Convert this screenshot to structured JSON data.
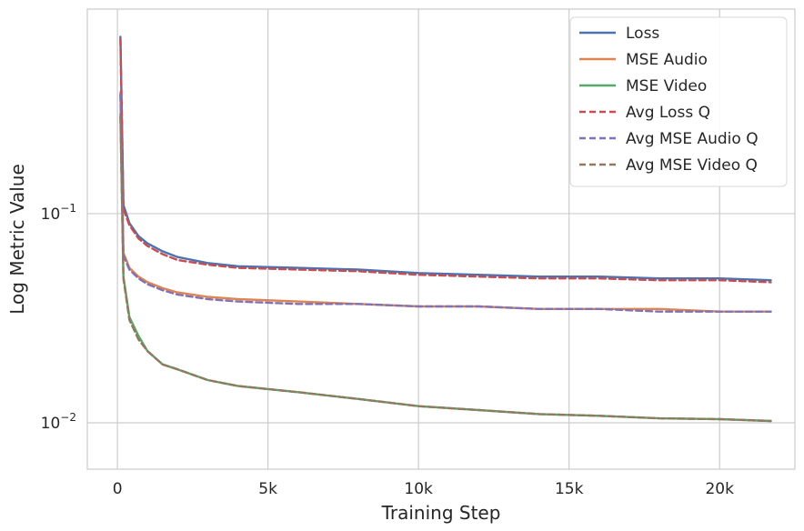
{
  "chart_data": {
    "type": "line",
    "title": "",
    "xlabel": "Training Step",
    "ylabel": "Log Metric Value",
    "x_scale": "linear",
    "y_scale": "log",
    "xlim": [
      -1000,
      22500
    ],
    "ylim": [
      0.006,
      0.95
    ],
    "x_ticks": [
      0,
      5000,
      10000,
      15000,
      20000
    ],
    "x_tick_labels": [
      "0",
      "5k",
      "10k",
      "15k",
      "20k"
    ],
    "y_ticks": [
      0.1,
      0.01
    ],
    "y_tick_labels": [
      {
        "base": "10",
        "exp": "−1"
      },
      {
        "base": "10",
        "exp": "−2"
      }
    ],
    "grid": true,
    "legend_position": "top-right",
    "series": [
      {
        "name": "Loss",
        "color": "#4c72b0",
        "dash": "solid",
        "x": [
          100,
          200,
          400,
          700,
          1000,
          1500,
          2000,
          3000,
          4000,
          6000,
          8000,
          10000,
          12000,
          14000,
          16000,
          18000,
          20000,
          21700
        ],
        "y": [
          0.7,
          0.11,
          0.09,
          0.078,
          0.072,
          0.066,
          0.062,
          0.058,
          0.056,
          0.055,
          0.054,
          0.052,
          0.051,
          0.05,
          0.05,
          0.049,
          0.049,
          0.048
        ]
      },
      {
        "name": "MSE Audio",
        "color": "#dd8452",
        "dash": "solid",
        "x": [
          100,
          200,
          400,
          700,
          1000,
          1500,
          2000,
          3000,
          4000,
          6000,
          8000,
          10000,
          12000,
          14000,
          16000,
          18000,
          20000,
          21700
        ],
        "y": [
          0.38,
          0.065,
          0.055,
          0.05,
          0.047,
          0.044,
          0.042,
          0.04,
          0.039,
          0.038,
          0.037,
          0.036,
          0.036,
          0.035,
          0.035,
          0.035,
          0.034,
          0.034
        ]
      },
      {
        "name": "MSE Video",
        "color": "#55a868",
        "dash": "solid",
        "x": [
          100,
          200,
          400,
          700,
          1000,
          1500,
          2000,
          3000,
          4000,
          6000,
          8000,
          10000,
          12000,
          14000,
          16000,
          18000,
          20000,
          21700
        ],
        "y": [
          0.3,
          0.05,
          0.032,
          0.026,
          0.022,
          0.019,
          0.018,
          0.016,
          0.015,
          0.014,
          0.013,
          0.012,
          0.0115,
          0.011,
          0.0108,
          0.0105,
          0.0104,
          0.0102
        ]
      },
      {
        "name": "Avg Loss Q",
        "color": "#c44e52",
        "dash": "dashed",
        "x": [
          100,
          200,
          400,
          700,
          1000,
          1500,
          2000,
          3000,
          4000,
          6000,
          8000,
          10000,
          12000,
          14000,
          16000,
          18000,
          20000,
          21700
        ],
        "y": [
          0.68,
          0.105,
          0.088,
          0.076,
          0.07,
          0.064,
          0.06,
          0.057,
          0.055,
          0.054,
          0.053,
          0.051,
          0.05,
          0.049,
          0.049,
          0.048,
          0.048,
          0.047
        ]
      },
      {
        "name": "Avg MSE Audio Q",
        "color": "#8172b3",
        "dash": "dashed",
        "x": [
          100,
          200,
          400,
          700,
          1000,
          1500,
          2000,
          3000,
          4000,
          6000,
          8000,
          10000,
          12000,
          14000,
          16000,
          18000,
          20000,
          21700
        ],
        "y": [
          0.37,
          0.063,
          0.054,
          0.049,
          0.046,
          0.043,
          0.041,
          0.039,
          0.038,
          0.037,
          0.037,
          0.036,
          0.036,
          0.035,
          0.035,
          0.034,
          0.034,
          0.034
        ]
      },
      {
        "name": "Avg MSE Video Q",
        "color": "#937860",
        "dash": "dashed",
        "x": [
          100,
          200,
          400,
          700,
          1000,
          1500,
          2000,
          3000,
          4000,
          6000,
          8000,
          10000,
          12000,
          14000,
          16000,
          18000,
          20000,
          21700
        ],
        "y": [
          0.29,
          0.049,
          0.031,
          0.025,
          0.022,
          0.019,
          0.018,
          0.016,
          0.015,
          0.014,
          0.013,
          0.012,
          0.0115,
          0.011,
          0.0108,
          0.0105,
          0.0104,
          0.0102
        ]
      }
    ]
  }
}
